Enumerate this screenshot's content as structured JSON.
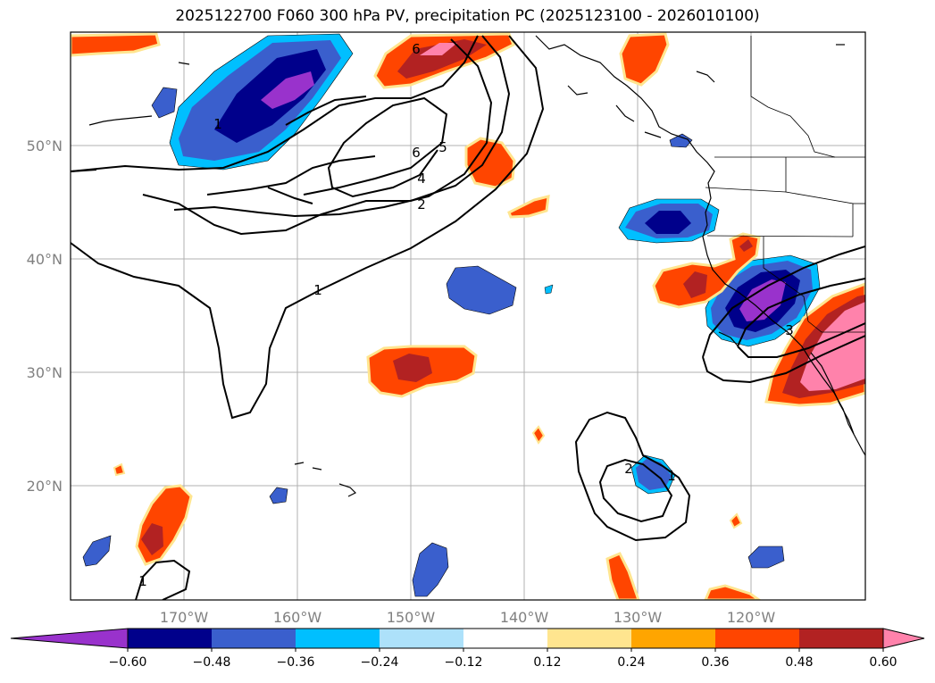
{
  "title": "2025122700 F060 300 hPa PV, precipitation PC (2025123100 - 2026010100)",
  "lat_labels": [
    "50°N",
    "40°N",
    "30°N",
    "20°N"
  ],
  "lon_labels": [
    "170°W",
    "160°W",
    "150°W",
    "140°W",
    "130°W",
    "120°W"
  ],
  "contour_labels": [
    "6",
    "6",
    "5",
    "4",
    "2",
    "1",
    "1",
    "1",
    "2",
    "1",
    "3"
  ],
  "colorbar": {
    "tick_labels": [
      "−0.60",
      "−0.48",
      "−0.36",
      "−0.24",
      "−0.12",
      "0.12",
      "0.24",
      "0.36",
      "0.48",
      "0.60"
    ],
    "colors": [
      "#9932CC",
      "#00008B",
      "#3A5FCD",
      "#00BFFF",
      "#ADE1FA",
      "#FFFFFF",
      "#FFE58F",
      "#FFA500",
      "#FF4500",
      "#B22222",
      "#FF82AB"
    ]
  }
}
